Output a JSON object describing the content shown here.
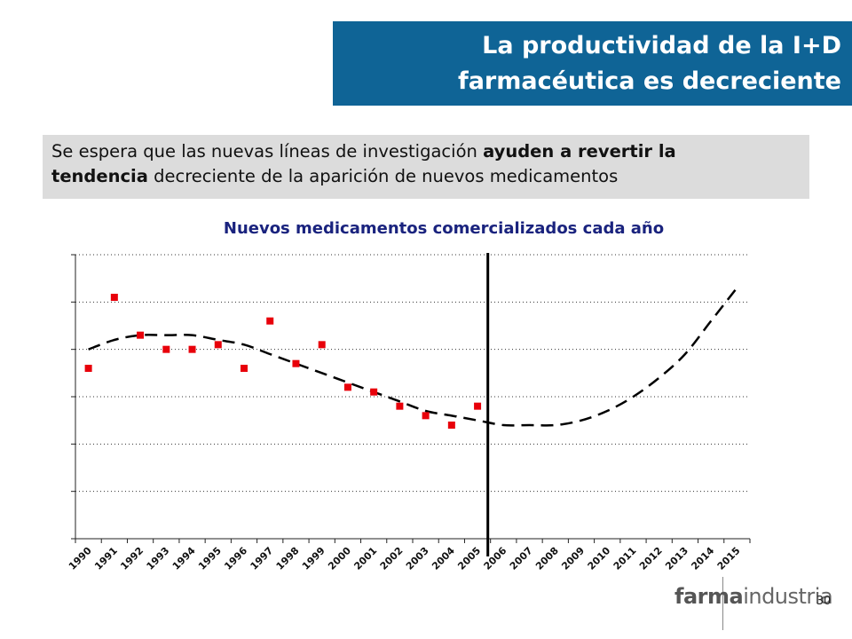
{
  "header": {
    "title_line1": "La productividad de la I+D",
    "title_line2": "farmacéutica es decreciente"
  },
  "subtitle": {
    "part1": "Se espera que las nuevas líneas de investigación ",
    "bold1": "ayuden a revertir la",
    "bold2": "tendencia",
    "part2": " decreciente de la aparición de nuevos medicamentos"
  },
  "footer": {
    "page_number": "30",
    "logo_bold": "farma",
    "logo_regular": "industria"
  },
  "colors": {
    "title_bg": "#0f6496",
    "subtitle_bg": "#dcdcdc",
    "chart_title": "#1a237e",
    "marker": "#e8000a"
  },
  "chart_data": {
    "type": "scatter",
    "title": "Nuevos medicamentos comercializados cada año",
    "xlabel": "",
    "ylabel": "",
    "categories": [
      "1990",
      "1991",
      "1992",
      "1993",
      "1994",
      "1995",
      "1996",
      "1997",
      "1998",
      "1999",
      "2000",
      "2001",
      "2002",
      "2003",
      "2004",
      "2005",
      "2006",
      "2007",
      "2008",
      "2009",
      "2010",
      "2011",
      "2012",
      "2013",
      "2014",
      "2015"
    ],
    "ylim": [
      0,
      6
    ],
    "y_ticks": [
      0,
      1,
      2,
      3,
      4,
      5,
      6
    ],
    "y_tick_labels_shown": false,
    "grid": "horizontal dotted",
    "series": [
      {
        "kind": "points",
        "x": [
          "1990",
          "1991",
          "1992",
          "1993",
          "1994",
          "1995",
          "1996",
          "1997",
          "1998",
          "1999",
          "2000",
          "2001",
          "2002",
          "2003",
          "2004",
          "2005"
        ],
        "values": [
          3.6,
          5.1,
          4.3,
          4.0,
          4.0,
          4.1,
          3.6,
          4.6,
          3.7,
          4.1,
          3.2,
          3.1,
          2.8,
          2.6,
          2.4,
          2.8
        ]
      },
      {
        "kind": "trend",
        "style": "dashed",
        "x": [
          "1990",
          "1991",
          "1992",
          "1993",
          "1994",
          "1995",
          "1996",
          "1997",
          "1998",
          "1999",
          "2000",
          "2001",
          "2002",
          "2003",
          "2004",
          "2005",
          "2006",
          "2007",
          "2008",
          "2009",
          "2010",
          "2011",
          "2012",
          "2013",
          "2014",
          "2015"
        ],
        "values": [
          4.0,
          4.2,
          4.3,
          4.3,
          4.3,
          4.2,
          4.1,
          3.9,
          3.7,
          3.5,
          3.3,
          3.1,
          2.9,
          2.7,
          2.6,
          2.5,
          2.4,
          2.4,
          2.4,
          2.5,
          2.7,
          3.0,
          3.4,
          3.9,
          4.6,
          5.3
        ]
      }
    ],
    "vertical_line_at": "2005"
  }
}
